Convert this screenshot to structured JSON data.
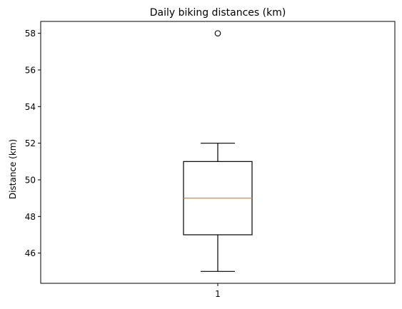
{
  "chart_data": {
    "type": "box",
    "title": "Daily biking distances (km)",
    "xlabel": "",
    "ylabel": "Distance (km)",
    "ylim": [
      44.35,
      58.65
    ],
    "yticks": [
      46,
      48,
      50,
      52,
      54,
      56,
      58
    ],
    "categories": [
      "1"
    ],
    "boxes": [
      {
        "category": "1",
        "whisker_low": 45,
        "q1": 47,
        "median": 49,
        "q3": 51,
        "whisker_high": 52,
        "outliers": [
          58
        ]
      }
    ],
    "grid": false,
    "colors": {
      "box": "#000000",
      "median": "#ff7f0e",
      "outlier_marker": "#000000"
    }
  }
}
